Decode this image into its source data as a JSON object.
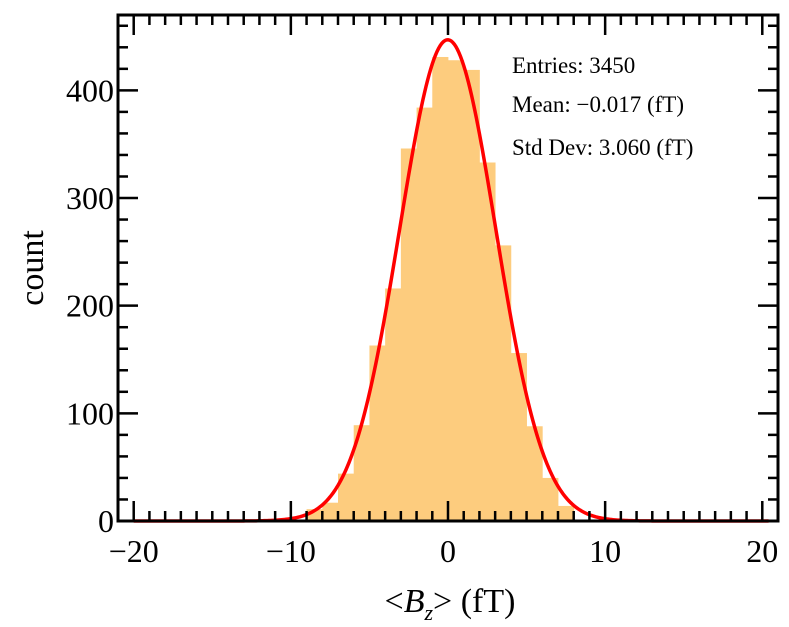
{
  "chart_data": {
    "type": "bar",
    "xlabel_prefix": "<",
    "xlabel_var": "B",
    "xlabel_sub": "z",
    "xlabel_suffix": "> (fT)",
    "ylabel": "count",
    "xlim": [
      -21,
      21
    ],
    "ylim": [
      0,
      470
    ],
    "x_ticks": [
      -20,
      -10,
      0,
      10,
      20
    ],
    "x_tick_labels": [
      "−20",
      "−10",
      "0",
      "10",
      "20"
    ],
    "y_ticks": [
      0,
      100,
      200,
      300,
      400
    ],
    "y_tick_labels": [
      "0",
      "100",
      "200",
      "300",
      "400"
    ],
    "grid": false,
    "bar_color": "#fdcc7e",
    "fit_color": "#ff0000",
    "bin_width": 1.0,
    "bins_left_edge": [
      -10,
      -9,
      -8,
      -7,
      -6,
      -5,
      -4,
      -3,
      -2,
      -1,
      0,
      1,
      2,
      3,
      4,
      5,
      6,
      7
    ],
    "counts": [
      1,
      11,
      17,
      44,
      89,
      163,
      216,
      346,
      384,
      431,
      428,
      419,
      333,
      256,
      156,
      88,
      40,
      14
    ],
    "fit": {
      "type": "gaussian",
      "amplitude": 447,
      "mean": -0.017,
      "sigma": 3.06
    },
    "stats": {
      "entries": "Entries: 3450",
      "mean": "Mean: −0.017 (fT)",
      "std_dev": "Std Dev: 3.060 (fT)"
    }
  }
}
